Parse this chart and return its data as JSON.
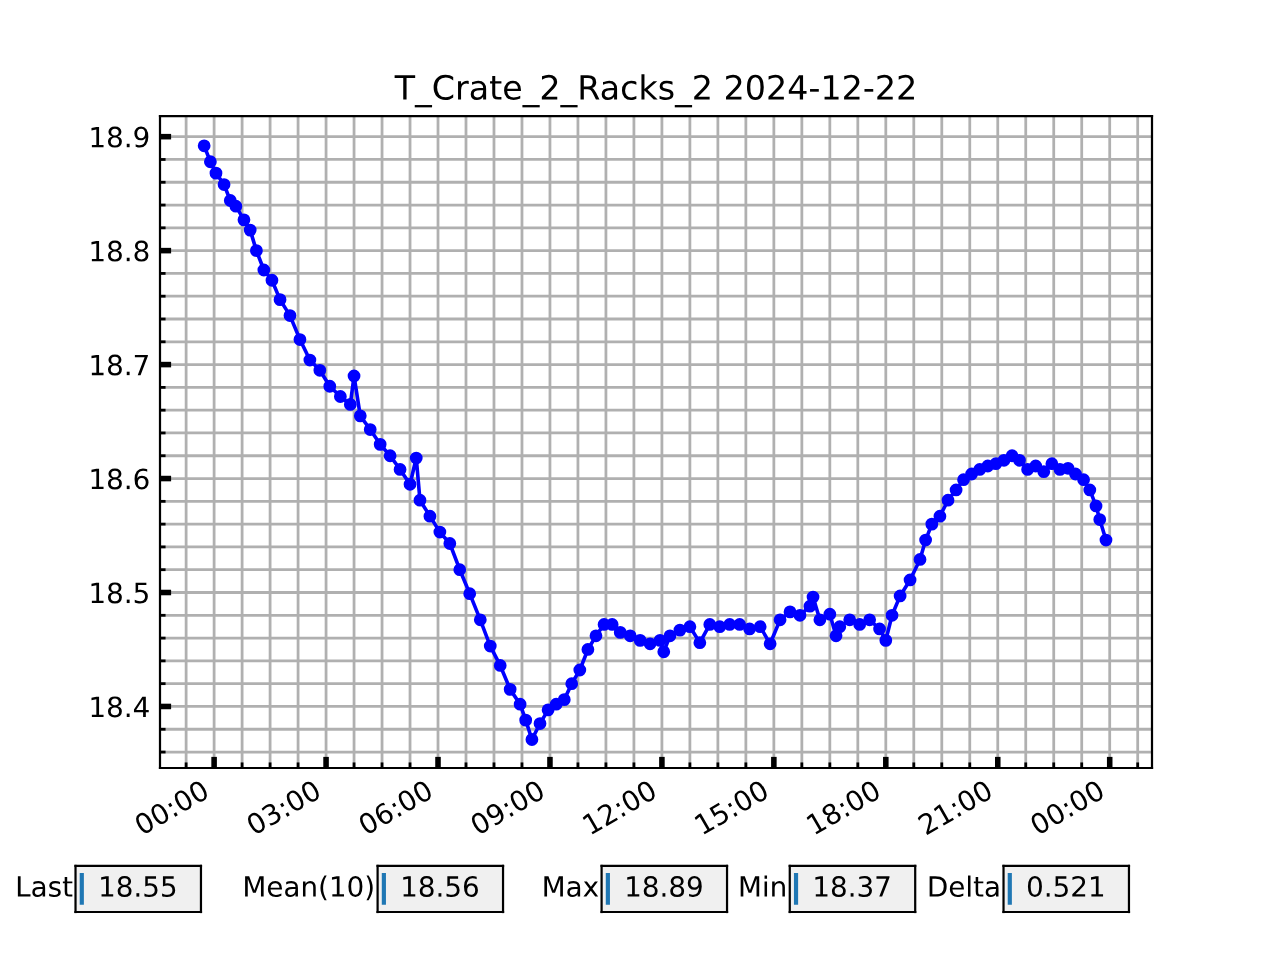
{
  "chart_data": {
    "type": "line",
    "title": "T_Crate_2_Racks_2 2024-12-22",
    "x": [
      "2024-12-21T23:44",
      "2024-12-21T23:54",
      "2024-12-22T00:03",
      "2024-12-22T00:16",
      "2024-12-22T00:26",
      "2024-12-22T00:35",
      "2024-12-22T00:48",
      "2024-12-22T00:58",
      "2024-12-22T01:08",
      "2024-12-22T01:20",
      "2024-12-22T01:33",
      "2024-12-22T01:46",
      "2024-12-22T02:02",
      "2024-12-22T02:18",
      "2024-12-22T02:34",
      "2024-12-22T02:50",
      "2024-12-22T03:06",
      "2024-12-22T03:23",
      "2024-12-22T03:39",
      "2024-12-22T03:45",
      "2024-12-22T03:55",
      "2024-12-22T04:11",
      "2024-12-22T04:27",
      "2024-12-22T04:43",
      "2024-12-22T04:59",
      "2024-12-22T05:15",
      "2024-12-22T05:25",
      "2024-12-22T05:31",
      "2024-12-22T05:47",
      "2024-12-22T06:03",
      "2024-12-22T06:19",
      "2024-12-22T06:35",
      "2024-12-22T06:51",
      "2024-12-22T07:08",
      "2024-12-22T07:24",
      "2024-12-22T07:40",
      "2024-12-22T07:56",
      "2024-12-22T08:12",
      "2024-12-22T08:21",
      "2024-12-22T08:31",
      "2024-12-22T08:44",
      "2024-12-22T08:57",
      "2024-12-22T09:10",
      "2024-12-22T09:23",
      "2024-12-22T09:35",
      "2024-12-22T09:48",
      "2024-12-22T10:01",
      "2024-12-22T10:14",
      "2024-12-22T10:27",
      "2024-12-22T10:40",
      "2024-12-22T10:53",
      "2024-12-22T11:09",
      "2024-12-22T11:25",
      "2024-12-22T11:41",
      "2024-12-22T11:57",
      "2024-12-22T12:03",
      "2024-12-22T12:13",
      "2024-12-22T12:29",
      "2024-12-22T12:45",
      "2024-12-22T13:01",
      "2024-12-22T13:17",
      "2024-12-22T13:33",
      "2024-12-22T13:49",
      "2024-12-22T14:05",
      "2024-12-22T14:21",
      "2024-12-22T14:38",
      "2024-12-22T14:54",
      "2024-12-22T15:10",
      "2024-12-22T15:26",
      "2024-12-22T15:42",
      "2024-12-22T15:58",
      "2024-12-22T16:03",
      "2024-12-22T16:14",
      "2024-12-22T16:30",
      "2024-12-22T16:40",
      "2024-12-22T16:46",
      "2024-12-22T17:02",
      "2024-12-22T17:18",
      "2024-12-22T17:34",
      "2024-12-22T17:50",
      "2024-12-22T18:00",
      "2024-12-22T18:10",
      "2024-12-22T18:23",
      "2024-12-22T18:39",
      "2024-12-22T18:55",
      "2024-12-22T19:04",
      "2024-12-22T19:14",
      "2024-12-22T19:27",
      "2024-12-22T19:40",
      "2024-12-22T19:53",
      "2024-12-22T20:05",
      "2024-12-22T20:18",
      "2024-12-22T20:31",
      "2024-12-22T20:44",
      "2024-12-22T20:57",
      "2024-12-22T21:10",
      "2024-12-22T21:23",
      "2024-12-22T21:35",
      "2024-12-22T21:48",
      "2024-12-22T22:01",
      "2024-12-22T22:14",
      "2024-12-22T22:27",
      "2024-12-22T22:40",
      "2024-12-22T22:53",
      "2024-12-22T23:05",
      "2024-12-22T23:18",
      "2024-12-22T23:28",
      "2024-12-22T23:38",
      "2024-12-22T23:44",
      "2024-12-22T23:54"
    ],
    "series": [
      {
        "color": "#0000ff",
        "values": [
          18.892,
          18.878,
          18.868,
          18.858,
          18.844,
          18.839,
          18.827,
          18.818,
          18.8,
          18.783,
          18.774,
          18.757,
          18.743,
          18.722,
          18.704,
          18.695,
          18.681,
          18.672,
          18.665,
          18.69,
          18.655,
          18.643,
          18.63,
          18.62,
          18.608,
          18.595,
          18.618,
          18.581,
          18.567,
          18.553,
          18.543,
          18.52,
          18.499,
          18.476,
          18.453,
          18.436,
          18.415,
          18.402,
          18.388,
          18.371,
          18.385,
          18.397,
          18.402,
          18.406,
          18.42,
          18.432,
          18.45,
          18.462,
          18.472,
          18.472,
          18.465,
          18.462,
          18.458,
          18.455,
          18.458,
          18.448,
          18.462,
          18.467,
          18.47,
          18.456,
          18.472,
          18.47,
          18.472,
          18.472,
          18.468,
          18.47,
          18.455,
          18.476,
          18.483,
          18.48,
          18.488,
          18.496,
          18.476,
          18.481,
          18.462,
          18.47,
          18.476,
          18.472,
          18.476,
          18.468,
          18.458,
          18.48,
          18.497,
          18.511,
          18.529,
          18.546,
          18.56,
          18.567,
          18.581,
          18.59,
          18.599,
          18.604,
          18.608,
          18.611,
          18.613,
          18.616,
          18.62,
          18.616,
          18.608,
          18.611,
          18.606,
          18.613,
          18.608,
          18.609,
          18.604,
          18.599,
          18.59,
          18.576,
          18.564,
          18.546
        ]
      }
    ],
    "xlim": [
      "2024-12-21T22:33",
      "2024-12-23T01:08"
    ],
    "xticks": [
      {
        "value": "2024-12-21T23:15",
        "label": null
      },
      {
        "value": "2024-12-22T00:00",
        "label": "00:00"
      },
      {
        "value": "2024-12-22T00:45",
        "label": null
      },
      {
        "value": "2024-12-22T01:30",
        "label": null
      },
      {
        "value": "2024-12-22T02:15",
        "label": null
      },
      {
        "value": "2024-12-22T03:00",
        "label": "03:00"
      },
      {
        "value": "2024-12-22T03:45",
        "label": null
      },
      {
        "value": "2024-12-22T04:30",
        "label": null
      },
      {
        "value": "2024-12-22T05:15",
        "label": null
      },
      {
        "value": "2024-12-22T06:00",
        "label": "06:00"
      },
      {
        "value": "2024-12-22T06:45",
        "label": null
      },
      {
        "value": "2024-12-22T07:30",
        "label": null
      },
      {
        "value": "2024-12-22T08:15",
        "label": null
      },
      {
        "value": "2024-12-22T09:00",
        "label": "09:00"
      },
      {
        "value": "2024-12-22T09:45",
        "label": null
      },
      {
        "value": "2024-12-22T10:30",
        "label": null
      },
      {
        "value": "2024-12-22T11:15",
        "label": null
      },
      {
        "value": "2024-12-22T12:00",
        "label": "12:00"
      },
      {
        "value": "2024-12-22T12:45",
        "label": null
      },
      {
        "value": "2024-12-22T13:30",
        "label": null
      },
      {
        "value": "2024-12-22T14:15",
        "label": null
      },
      {
        "value": "2024-12-22T15:00",
        "label": "15:00"
      },
      {
        "value": "2024-12-22T15:45",
        "label": null
      },
      {
        "value": "2024-12-22T16:30",
        "label": null
      },
      {
        "value": "2024-12-22T17:15",
        "label": null
      },
      {
        "value": "2024-12-22T18:00",
        "label": "18:00"
      },
      {
        "value": "2024-12-22T18:45",
        "label": null
      },
      {
        "value": "2024-12-22T19:30",
        "label": null
      },
      {
        "value": "2024-12-22T20:15",
        "label": null
      },
      {
        "value": "2024-12-22T21:00",
        "label": "21:00"
      },
      {
        "value": "2024-12-22T21:45",
        "label": null
      },
      {
        "value": "2024-12-22T22:30",
        "label": null
      },
      {
        "value": "2024-12-22T23:15",
        "label": null
      },
      {
        "value": "2024-12-23T00:00",
        "label": "00:00"
      },
      {
        "value": "2024-12-23T00:45",
        "label": null
      }
    ],
    "ylim": [
      18.346,
      18.918
    ],
    "yticks": [
      {
        "value": 18.36,
        "label": null
      },
      {
        "value": 18.38,
        "label": null
      },
      18.4,
      {
        "value": 18.42,
        "label": null
      },
      {
        "value": 18.44,
        "label": null
      },
      {
        "value": 18.46,
        "label": null
      },
      {
        "value": 18.48,
        "label": null
      },
      18.5,
      {
        "value": 18.52,
        "label": null
      },
      {
        "value": 18.54,
        "label": null
      },
      {
        "value": 18.56,
        "label": null
      },
      {
        "value": 18.58,
        "label": null
      },
      18.6,
      {
        "value": 18.62,
        "label": null
      },
      {
        "value": 18.64,
        "label": null
      },
      {
        "value": 18.66,
        "label": null
      },
      {
        "value": 18.68,
        "label": null
      },
      18.7,
      {
        "value": 18.72,
        "label": null
      },
      {
        "value": 18.74,
        "label": null
      },
      {
        "value": 18.76,
        "label": null
      },
      {
        "value": 18.78,
        "label": null
      },
      18.8,
      {
        "value": 18.82,
        "label": null
      },
      {
        "value": 18.84,
        "label": null
      },
      {
        "value": 18.86,
        "label": null
      },
      {
        "value": 18.88,
        "label": null
      },
      18.9
    ],
    "grid": true,
    "marker": "circle",
    "line_style": "solid",
    "annotations": [
      "Last",
      "18.55",
      "Mean(10)",
      "18.56",
      "Max",
      "18.89",
      "Min",
      "18.37",
      "Delta",
      "0.521"
    ]
  }
}
